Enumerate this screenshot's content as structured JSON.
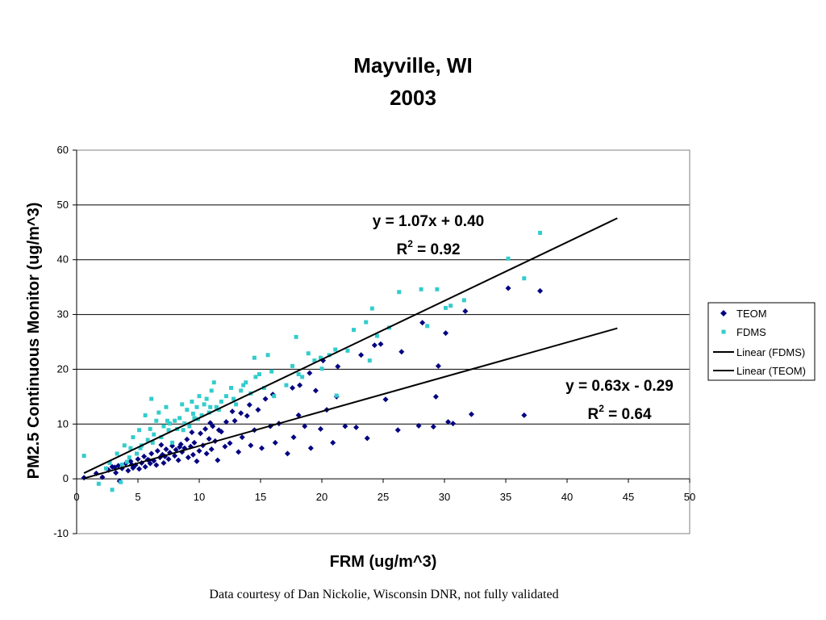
{
  "chart_data": {
    "type": "scatter",
    "title": "Mayville, WI",
    "subtitle": "2003",
    "xlabel": "FRM (ug/m^3)",
    "ylabel": "PM2.5 Continuous Monitor (ug/m^3)",
    "xlim": [
      0,
      50
    ],
    "ylim": [
      -10,
      60
    ],
    "xticks": [
      "0",
      "5",
      "10",
      "15",
      "20",
      "25",
      "30",
      "35",
      "40",
      "45",
      "50"
    ],
    "yticks": [
      "-10",
      "0",
      "10",
      "20",
      "30",
      "40",
      "50",
      "60"
    ],
    "grid": "horizontal",
    "legend_position": "right",
    "series": [
      {
        "name": "TEOM",
        "marker": "diamond",
        "color": "#000080",
        "points": [
          [
            0.6,
            0.2
          ],
          [
            1.6,
            1.0
          ],
          [
            2.1,
            0.3
          ],
          [
            2.6,
            1.6
          ],
          [
            2.9,
            2.2
          ],
          [
            3.2,
            1.1
          ],
          [
            3.4,
            2.4
          ],
          [
            3.5,
            -0.4
          ],
          [
            3.7,
            1.9
          ],
          [
            4.0,
            2.8
          ],
          [
            4.2,
            1.5
          ],
          [
            4.4,
            3.2
          ],
          [
            4.6,
            2.0
          ],
          [
            4.8,
            2.5
          ],
          [
            5.0,
            3.6
          ],
          [
            5.1,
            1.8
          ],
          [
            5.3,
            2.9
          ],
          [
            5.5,
            4.1
          ],
          [
            5.6,
            2.2
          ],
          [
            5.8,
            3.5
          ],
          [
            6.0,
            2.8
          ],
          [
            6.1,
            4.6
          ],
          [
            6.3,
            3.3
          ],
          [
            6.5,
            2.5
          ],
          [
            6.6,
            5.1
          ],
          [
            6.8,
            3.9
          ],
          [
            7.0,
            4.4
          ],
          [
            7.1,
            2.9
          ],
          [
            7.3,
            5.4
          ],
          [
            7.5,
            3.6
          ],
          [
            7.6,
            4.8
          ],
          [
            7.8,
            6.0
          ],
          [
            8.0,
            4.2
          ],
          [
            8.1,
            5.3
          ],
          [
            8.3,
            3.4
          ],
          [
            8.5,
            6.3
          ],
          [
            8.6,
            4.9
          ],
          [
            8.8,
            5.6
          ],
          [
            9.0,
            7.2
          ],
          [
            9.1,
            3.9
          ],
          [
            9.3,
            5.9
          ],
          [
            9.5,
            4.4
          ],
          [
            9.6,
            6.6
          ],
          [
            9.8,
            3.2
          ],
          [
            10.0,
            5.1
          ],
          [
            10.1,
            8.3
          ],
          [
            10.3,
            6.1
          ],
          [
            10.5,
            9.1
          ],
          [
            10.6,
            4.6
          ],
          [
            10.8,
            7.3
          ],
          [
            11.0,
            5.4
          ],
          [
            11.1,
            9.6
          ],
          [
            11.3,
            6.9
          ],
          [
            11.5,
            3.4
          ],
          [
            11.8,
            8.6
          ],
          [
            12.1,
            5.9
          ],
          [
            12.5,
            6.5
          ],
          [
            12.9,
            10.6
          ],
          [
            13.2,
            4.9
          ],
          [
            13.5,
            7.6
          ],
          [
            13.9,
            11.5
          ],
          [
            14.2,
            6.1
          ],
          [
            14.5,
            8.9
          ],
          [
            14.8,
            12.6
          ],
          [
            15.1,
            5.6
          ],
          [
            15.4,
            14.6
          ],
          [
            15.8,
            9.6
          ],
          [
            16.2,
            6.6
          ],
          [
            16.5,
            10.1
          ],
          [
            17.2,
            4.6
          ],
          [
            17.7,
            7.6
          ],
          [
            18.1,
            11.6
          ],
          [
            18.6,
            9.6
          ],
          [
            19.1,
            5.6
          ],
          [
            19.5,
            16.1
          ],
          [
            19.9,
            9.1
          ],
          [
            20.4,
            12.6
          ],
          [
            20.9,
            6.6
          ],
          [
            21.3,
            20.5
          ],
          [
            21.2,
            15.0
          ],
          [
            21.9,
            9.6
          ],
          [
            22.8,
            9.4
          ],
          [
            23.7,
            7.4
          ],
          [
            24.3,
            24.4
          ],
          [
            25.2,
            14.5
          ],
          [
            26.2,
            8.9
          ],
          [
            26.5,
            23.2
          ],
          [
            27.9,
            9.7
          ],
          [
            28.2,
            28.5
          ],
          [
            29.1,
            9.5
          ],
          [
            29.5,
            20.6
          ],
          [
            30.3,
            10.4
          ],
          [
            30.7,
            10.1
          ],
          [
            31.7,
            30.6
          ],
          [
            32.2,
            11.8
          ],
          [
            35.2,
            34.8
          ],
          [
            36.5,
            11.6
          ],
          [
            37.8,
            34.3
          ],
          [
            29.3,
            15.0
          ],
          [
            30.1,
            26.6
          ],
          [
            23.2,
            22.6
          ],
          [
            24.8,
            24.6
          ],
          [
            19.0,
            19.3
          ],
          [
            20.1,
            21.6
          ],
          [
            18.2,
            17.1
          ],
          [
            16.0,
            15.4
          ],
          [
            13.4,
            12.0
          ],
          [
            12.2,
            10.4
          ],
          [
            11.6,
            8.9
          ],
          [
            9.4,
            8.5
          ],
          [
            8.4,
            5.8
          ],
          [
            7.2,
            4.1
          ],
          [
            5.9,
            3.4
          ],
          [
            4.5,
            2.6
          ],
          [
            3.1,
            2.1
          ],
          [
            6.9,
            6.2
          ],
          [
            10.9,
            10.2
          ],
          [
            14.1,
            13.5
          ],
          [
            17.6,
            16.6
          ],
          [
            12.7,
            12.3
          ]
        ]
      },
      {
        "name": "FDMS",
        "marker": "square",
        "color": "#33CCCC",
        "points": [
          [
            0.6,
            4.2
          ],
          [
            1.8,
            -0.9
          ],
          [
            2.4,
            1.9
          ],
          [
            2.9,
            -2.0
          ],
          [
            3.3,
            4.6
          ],
          [
            3.6,
            -0.6
          ],
          [
            3.9,
            6.1
          ],
          [
            4.1,
            3.1
          ],
          [
            4.4,
            5.6
          ],
          [
            4.6,
            7.6
          ],
          [
            4.9,
            4.6
          ],
          [
            5.1,
            8.9
          ],
          [
            5.3,
            6.1
          ],
          [
            5.6,
            11.6
          ],
          [
            5.8,
            7.1
          ],
          [
            6.0,
            9.1
          ],
          [
            6.1,
            14.6
          ],
          [
            6.3,
            8.1
          ],
          [
            6.5,
            10.6
          ],
          [
            6.7,
            12.1
          ],
          [
            6.9,
            7.6
          ],
          [
            7.1,
            9.6
          ],
          [
            7.3,
            13.1
          ],
          [
            7.5,
            8.9
          ],
          [
            7.6,
            10.1
          ],
          [
            7.8,
            6.6
          ],
          [
            8.0,
            10.6
          ],
          [
            8.2,
            9.1
          ],
          [
            8.4,
            11.1
          ],
          [
            8.6,
            13.6
          ],
          [
            8.8,
            10.1
          ],
          [
            9.0,
            12.6
          ],
          [
            9.2,
            9.6
          ],
          [
            9.4,
            14.1
          ],
          [
            9.6,
            11.1
          ],
          [
            9.8,
            13.1
          ],
          [
            10.0,
            15.1
          ],
          [
            10.2,
            11.6
          ],
          [
            10.4,
            13.6
          ],
          [
            10.6,
            14.6
          ],
          [
            10.8,
            12.1
          ],
          [
            11.0,
            16.1
          ],
          [
            11.2,
            17.6
          ],
          [
            11.4,
            13.1
          ],
          [
            11.8,
            14.1
          ],
          [
            12.2,
            15.1
          ],
          [
            12.6,
            16.6
          ],
          [
            13.0,
            13.6
          ],
          [
            13.4,
            16.1
          ],
          [
            13.8,
            17.6
          ],
          [
            14.2,
            15.6
          ],
          [
            14.5,
            22.1
          ],
          [
            14.9,
            19.1
          ],
          [
            15.3,
            16.6
          ],
          [
            15.6,
            22.6
          ],
          [
            16.1,
            15.1
          ],
          [
            17.1,
            17.1
          ],
          [
            17.6,
            20.6
          ],
          [
            17.9,
            25.9
          ],
          [
            18.4,
            18.6
          ],
          [
            18.9,
            22.9
          ],
          [
            19.4,
            21.6
          ],
          [
            20.0,
            20.1
          ],
          [
            20.6,
            22.6
          ],
          [
            21.1,
            23.6
          ],
          [
            21.2,
            15.2
          ],
          [
            22.6,
            27.2
          ],
          [
            23.6,
            28.6
          ],
          [
            24.1,
            31.1
          ],
          [
            24.5,
            26.1
          ],
          [
            25.5,
            27.6
          ],
          [
            26.3,
            34.1
          ],
          [
            28.1,
            34.6
          ],
          [
            28.6,
            27.9
          ],
          [
            29.4,
            34.6
          ],
          [
            30.1,
            31.2
          ],
          [
            30.5,
            31.6
          ],
          [
            31.6,
            32.6
          ],
          [
            35.2,
            40.2
          ],
          [
            36.5,
            36.6
          ],
          [
            37.8,
            44.9
          ],
          [
            23.9,
            21.6
          ],
          [
            19.9,
            22.1
          ],
          [
            14.6,
            18.6
          ],
          [
            12.8,
            14.6
          ],
          [
            11.6,
            12.6
          ],
          [
            9.5,
            11.9
          ],
          [
            8.7,
            8.9
          ],
          [
            7.4,
            10.6
          ],
          [
            6.2,
            6.6
          ],
          [
            5.2,
            5.6
          ],
          [
            4.3,
            3.9
          ],
          [
            3.7,
            2.6
          ],
          [
            2.7,
            2.9
          ],
          [
            15.9,
            19.6
          ],
          [
            13.6,
            17.1
          ],
          [
            10.9,
            13.1
          ],
          [
            9.9,
            10.9
          ],
          [
            18.1,
            19.1
          ],
          [
            22.1,
            23.4
          ]
        ]
      }
    ],
    "trendlines": [
      {
        "name": "Linear (FDMS)",
        "slope": 1.07,
        "intercept": 0.4,
        "x_range": [
          0.6,
          44.1
        ],
        "equation": "y = 1.07x + 0.40",
        "r2_label": "R",
        "r2_sup": "2",
        "r2_value": " = 0.92"
      },
      {
        "name": "Linear (TEOM)",
        "slope": 0.63,
        "intercept": -0.29,
        "x_range": [
          0.6,
          44.1
        ],
        "equation": "y = 0.63x - 0.29",
        "r2_label": "R",
        "r2_sup": "2",
        "r2_value": " = 0.64"
      }
    ],
    "legend": [
      "TEOM",
      "FDMS",
      "Linear (FDMS)",
      "Linear (TEOM)"
    ]
  },
  "credit": "Data courtesy of Dan Nickolie, Wisconsin DNR, not fully validated"
}
